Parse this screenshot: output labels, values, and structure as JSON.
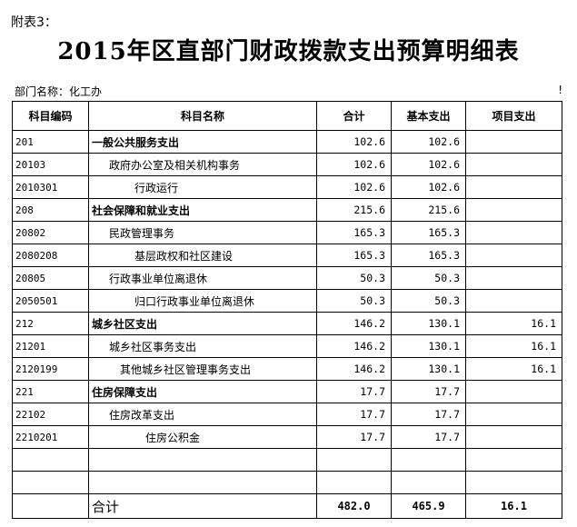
{
  "header": {
    "attach_label": "附表3：",
    "title": "2015年区直部门财政拨款支出预算明细表",
    "dept_label": "部门名称：化工办",
    "unit_label": "!"
  },
  "table": {
    "columns": [
      "科目编码",
      "科目名称",
      "合计",
      "基本支出",
      "项目支出"
    ],
    "rows": [
      {
        "code": "201",
        "name": "一般公共服务支出",
        "total": "102.6",
        "basic": "102.6",
        "project": "",
        "level": 1
      },
      {
        "code": "20103",
        "name": "政府办公室及相关机构事务",
        "total": "102.6",
        "basic": "102.6",
        "project": "",
        "level": 2
      },
      {
        "code": "2010301",
        "name": "行政运行",
        "total": "102.6",
        "basic": "102.6",
        "project": "",
        "level": 3
      },
      {
        "code": "208",
        "name": "社会保障和就业支出",
        "total": "215.6",
        "basic": "215.6",
        "project": "",
        "level": 1
      },
      {
        "code": "20802",
        "name": "民政管理事务",
        "total": "165.3",
        "basic": "165.3",
        "project": "",
        "level": 2
      },
      {
        "code": "2080208",
        "name": "基层政权和社区建设",
        "total": "165.3",
        "basic": "165.3",
        "project": "",
        "level": 3
      },
      {
        "code": "20805",
        "name": "行政事业单位离退休",
        "total": "50.3",
        "basic": "50.3",
        "project": "",
        "level": 2
      },
      {
        "code": "2050501",
        "name": "归口行政事业单位离退休",
        "total": "50.3",
        "basic": "50.3",
        "project": "",
        "level": 3
      },
      {
        "code": "212",
        "name": "城乡社区支出",
        "total": "146.2",
        "basic": "130.1",
        "project": "16.1",
        "level": 1
      },
      {
        "code": "21201",
        "name": "城乡社区事务支出",
        "total": "146.2",
        "basic": "130.1",
        "project": "16.1",
        "level": 2
      },
      {
        "code": "2120199",
        "name": "其他城乡社区管理事务支出",
        "total": "146.2",
        "basic": "130.1",
        "project": "16.1",
        "level": 3
      },
      {
        "code": "221",
        "name": "住房保障支出",
        "total": "17.7",
        "basic": "17.7",
        "project": "",
        "level": 1
      },
      {
        "code": "22102",
        "name": "住房改革支出",
        "total": "17.7",
        "basic": "17.7",
        "project": "",
        "level": 2
      },
      {
        "code": "2210201",
        "name": "住房公积金",
        "total": "17.7",
        "basic": "17.7",
        "project": "",
        "level": 3
      },
      {
        "code": "",
        "name": "",
        "total": "",
        "basic": "",
        "project": "",
        "level": 0
      },
      {
        "code": "",
        "name": "",
        "total": "",
        "basic": "",
        "project": "",
        "level": 0
      }
    ],
    "total_row": {
      "label": "合计",
      "total": "482.0",
      "basic": "465.9",
      "project": "16.1"
    }
  }
}
